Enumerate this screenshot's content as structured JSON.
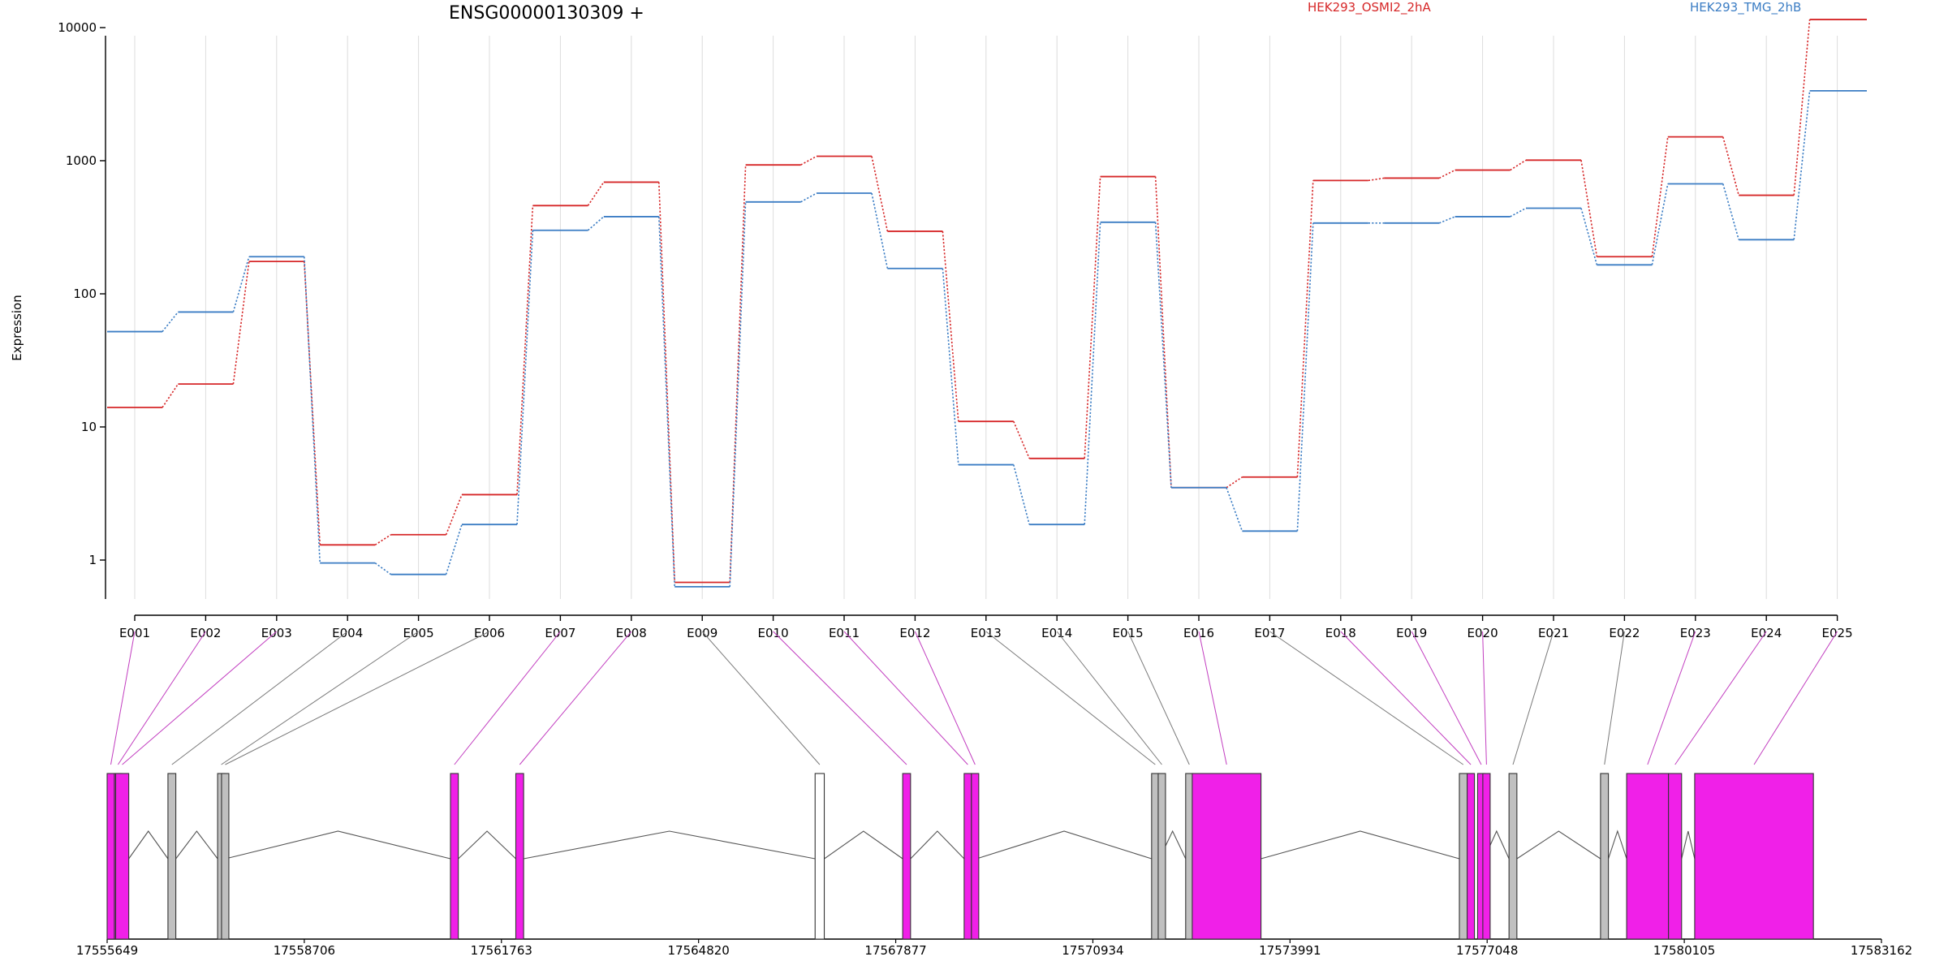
{
  "title": "ENSG00000130309 +",
  "legend": [
    {
      "name": "HEK293_OSMI2_2hA",
      "color": "#d62728"
    },
    {
      "name": "HEK293_TMG_2hB",
      "color": "#3b7dc4"
    }
  ],
  "chart_data": {
    "type": "line",
    "title": "ENSG00000130309 +",
    "ylabel": "Expression",
    "xlabel": "",
    "yscale": "log",
    "ylim": [
      0.3,
      15000
    ],
    "yticks": [
      1,
      10,
      100,
      1000,
      10000
    ],
    "ytick_labels": [
      "1",
      "10",
      "100",
      "1000",
      "10000"
    ],
    "grid": "vertical",
    "categories": [
      "E001",
      "E002",
      "E003",
      "E004",
      "E005",
      "E006",
      "E007",
      "E008",
      "E009",
      "E010",
      "E011",
      "E012",
      "E013",
      "E014",
      "E015",
      "E016",
      "E017",
      "E018",
      "E019",
      "E020",
      "E021",
      "E022",
      "E023",
      "E024",
      "E025"
    ],
    "series": [
      {
        "name": "HEK293_OSMI2_2hA",
        "color": "#d62728",
        "values": [
          14,
          21,
          175,
          1.3,
          1.55,
          3.1,
          460,
          690,
          0.68,
          930,
          1080,
          295,
          11,
          5.8,
          760,
          3.5,
          4.2,
          710,
          740,
          850,
          1010,
          190,
          1510,
          550,
          11500
        ]
      },
      {
        "name": "HEK293_TMG_2hB",
        "color": "#3b7dc4",
        "values": [
          52,
          73,
          190,
          0.95,
          0.78,
          1.85,
          300,
          380,
          0.63,
          490,
          570,
          155,
          5.2,
          1.85,
          345,
          3.5,
          1.65,
          340,
          340,
          380,
          440,
          165,
          670,
          255,
          3350
        ]
      }
    ],
    "gene_model": {
      "coordinate_labels": [
        "17555649",
        "17558706",
        "17561763",
        "17564820",
        "17567877",
        "17570934",
        "17573991",
        "17577048",
        "17580105",
        "17583162"
      ],
      "start": 17555649,
      "end": 17583162,
      "exons": [
        {
          "id": "E001",
          "start": 17555649,
          "end": 17555761,
          "color": "#f020e8"
        },
        {
          "id": "E002",
          "start": 17555761,
          "end": 17555781,
          "color": "#f020e8"
        },
        {
          "id": "E003",
          "start": 17555781,
          "end": 17555984,
          "color": "#f020e8"
        },
        {
          "id": "E004",
          "start": 17556592,
          "end": 17556714,
          "color": "#c0c0c0"
        },
        {
          "id": "E005",
          "start": 17557362,
          "end": 17557423,
          "color": "#c0c0c0"
        },
        {
          "id": "E006",
          "start": 17557423,
          "end": 17557484,
          "color": "#c0c0c0"
        },
        {
          "id": "E007",
          "start": 17560973,
          "end": 17561094,
          "color": "#f020e8"
        },
        {
          "id": "E008",
          "start": 17561986,
          "end": 17562107,
          "color": "#f020e8"
        },
        {
          "id": "E009",
          "start": 17566627,
          "end": 17566769,
          "color": "#ffffff"
        },
        {
          "id": "E010",
          "start": 17567985,
          "end": 17568107,
          "color": "#f020e8"
        },
        {
          "id": "E011",
          "start": 17568938,
          "end": 17569051,
          "color": "#f020e8"
        },
        {
          "id": "E012",
          "start": 17569051,
          "end": 17569131,
          "color": "#f020e8"
        },
        {
          "id": "E013",
          "start": 17571845,
          "end": 17571947,
          "color": "#c0c0c0"
        },
        {
          "id": "E014",
          "start": 17571947,
          "end": 17571967,
          "color": "#c0c0c0"
        },
        {
          "id": "E015",
          "start": 17572373,
          "end": 17572475,
          "color": "#c0c0c0"
        },
        {
          "id": "E016",
          "start": 17572475,
          "end": 17573541,
          "color": "#f020e8"
        },
        {
          "id": "E017",
          "start": 17576617,
          "end": 17576738,
          "color": "#c0c0c0"
        },
        {
          "id": "E018",
          "start": 17576738,
          "end": 17576800,
          "color": "#f020e8"
        },
        {
          "id": "E019",
          "start": 17576900,
          "end": 17576981,
          "color": "#f020e8"
        },
        {
          "id": "E020",
          "start": 17576981,
          "end": 17577001,
          "color": "#f020e8"
        },
        {
          "id": "E021",
          "start": 17577387,
          "end": 17577509,
          "color": "#c0c0c0"
        },
        {
          "id": "E022",
          "start": 17578806,
          "end": 17578928,
          "color": "#c0c0c0"
        },
        {
          "id": "E023",
          "start": 17579211,
          "end": 17579860,
          "color": "#f020e8"
        },
        {
          "id": "E024",
          "start": 17579860,
          "end": 17580063,
          "color": "#f020e8"
        },
        {
          "id": "E025",
          "start": 17580266,
          "end": 17582107,
          "color": "#f020e8"
        }
      ]
    }
  }
}
